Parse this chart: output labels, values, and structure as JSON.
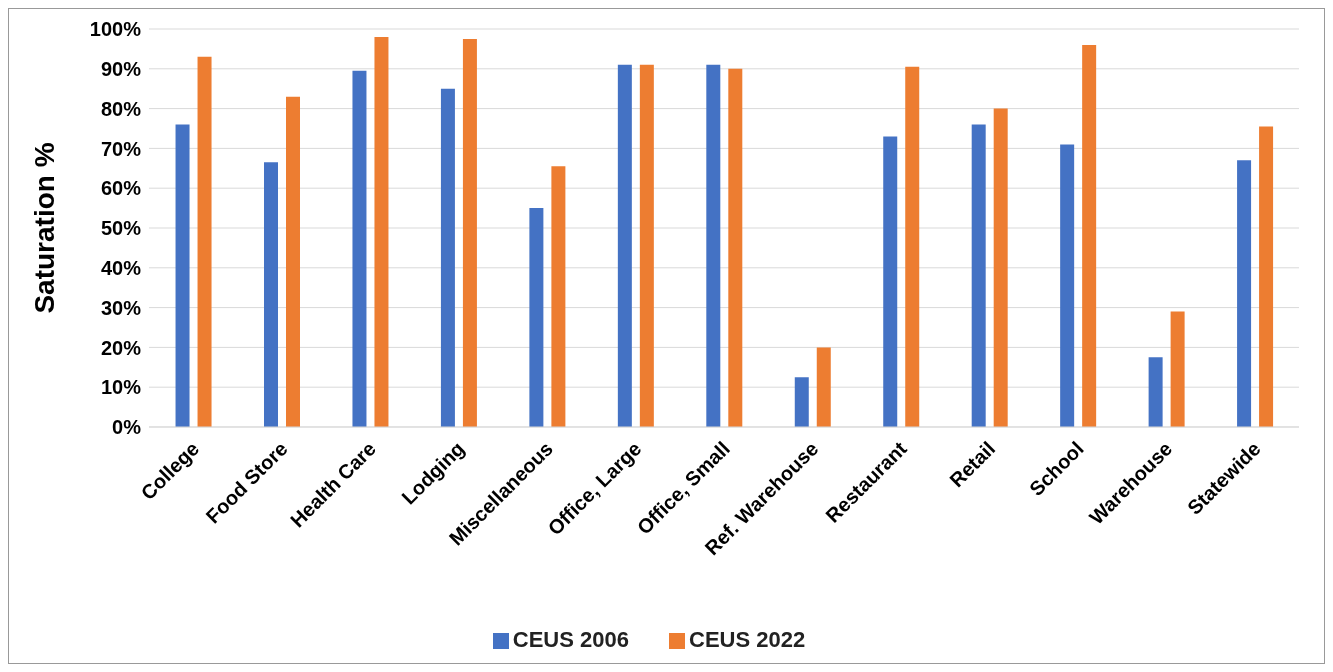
{
  "chart_data": {
    "type": "bar",
    "ylabel": "Saturation %",
    "categories": [
      "College",
      "Food Store",
      "Health Care",
      "Lodging",
      "Miscellaneous",
      "Office, Large",
      "Office, Small",
      "Ref. Warehouse",
      "Restaurant",
      "Retail",
      "School",
      "Warehouse",
      "Statewide"
    ],
    "series": [
      {
        "name": "CEUS 2006",
        "color": "#4472c4",
        "values": [
          76,
          66.5,
          89.5,
          85,
          55,
          91,
          91,
          12.5,
          73,
          76,
          71,
          17.5,
          67
        ]
      },
      {
        "name": "CEUS 2022",
        "color": "#ed7d31",
        "values": [
          93,
          83,
          98,
          97.5,
          65.5,
          91,
          90,
          20,
          90.5,
          80,
          96,
          29,
          75.5
        ]
      }
    ],
    "ylim": [
      0,
      100
    ],
    "yticks": [
      {
        "value": 0,
        "label": "0%"
      },
      {
        "value": 10,
        "label": "10%"
      },
      {
        "value": 20,
        "label": "20%"
      },
      {
        "value": 30,
        "label": "30%"
      },
      {
        "value": 40,
        "label": "40%"
      },
      {
        "value": 50,
        "label": "50%"
      },
      {
        "value": 60,
        "label": "60%"
      },
      {
        "value": 70,
        "label": "70%"
      },
      {
        "value": 80,
        "label": "80%"
      },
      {
        "value": 90,
        "label": "90%"
      },
      {
        "value": 100,
        "label": "100%"
      }
    ],
    "grid": "y",
    "legend": "bottom"
  }
}
